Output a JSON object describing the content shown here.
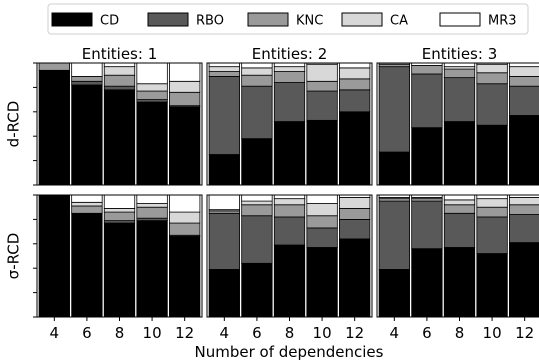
{
  "chart_data": {
    "type": "bar",
    "stacked": true,
    "normalized": true,
    "xlabel": "Number of dependencies",
    "categories": [
      "4",
      "6",
      "8",
      "10",
      "12"
    ],
    "series_order": [
      "CD",
      "RBO",
      "KNC",
      "CA",
      "MR3"
    ],
    "colors": {
      "CD": "#000000",
      "RBO": "#595959",
      "KNC": "#9a9a9a",
      "CA": "#d8d8d8",
      "MR3": "#ffffff"
    },
    "legend": {
      "position": "top",
      "entries": [
        "CD",
        "RBO",
        "KNC",
        "CA",
        "MR3"
      ]
    },
    "row_labels": [
      "d-RCD",
      "σ-RCD"
    ],
    "col_titles": [
      "Entities: 1",
      "Entities: 2",
      "Entities: 3"
    ],
    "ylim": [
      0,
      1
    ],
    "grid": false,
    "panels": [
      {
        "row": 0,
        "col": 0,
        "stacks": [
          {
            "CD": 0.94,
            "RBO": 0.0,
            "KNC": 0.06,
            "CA": 0.0,
            "MR3": 0.0
          },
          {
            "CD": 0.82,
            "RBO": 0.03,
            "KNC": 0.04,
            "CA": 0.0,
            "MR3": 0.11
          },
          {
            "CD": 0.78,
            "RBO": 0.03,
            "KNC": 0.09,
            "CA": 0.07,
            "MR3": 0.03
          },
          {
            "CD": 0.68,
            "RBO": 0.02,
            "KNC": 0.07,
            "CA": 0.06,
            "MR3": 0.17
          },
          {
            "CD": 0.64,
            "RBO": 0.01,
            "KNC": 0.11,
            "CA": 0.09,
            "MR3": 0.15
          }
        ]
      },
      {
        "row": 0,
        "col": 1,
        "stacks": [
          {
            "CD": 0.25,
            "RBO": 0.64,
            "KNC": 0.04,
            "CA": 0.04,
            "MR3": 0.03
          },
          {
            "CD": 0.38,
            "RBO": 0.43,
            "KNC": 0.09,
            "CA": 0.06,
            "MR3": 0.04
          },
          {
            "CD": 0.52,
            "RBO": 0.32,
            "KNC": 0.09,
            "CA": 0.04,
            "MR3": 0.03
          },
          {
            "CD": 0.53,
            "RBO": 0.24,
            "KNC": 0.08,
            "CA": 0.14,
            "MR3": 0.01
          },
          {
            "CD": 0.6,
            "RBO": 0.18,
            "KNC": 0.09,
            "CA": 0.09,
            "MR3": 0.04
          }
        ]
      },
      {
        "row": 0,
        "col": 2,
        "stacks": [
          {
            "CD": 0.27,
            "RBO": 0.7,
            "KNC": 0.02,
            "CA": 0.01,
            "MR3": 0.0
          },
          {
            "CD": 0.47,
            "RBO": 0.44,
            "KNC": 0.07,
            "CA": 0.0,
            "MR3": 0.02
          },
          {
            "CD": 0.52,
            "RBO": 0.36,
            "KNC": 0.07,
            "CA": 0.02,
            "MR3": 0.03
          },
          {
            "CD": 0.49,
            "RBO": 0.34,
            "KNC": 0.09,
            "CA": 0.07,
            "MR3": 0.01
          },
          {
            "CD": 0.57,
            "RBO": 0.24,
            "KNC": 0.08,
            "CA": 0.08,
            "MR3": 0.03
          }
        ]
      },
      {
        "row": 1,
        "col": 0,
        "stacks": [
          {
            "CD": 1.0,
            "RBO": 0.0,
            "KNC": 0.0,
            "CA": 0.0,
            "MR3": 0.0
          },
          {
            "CD": 0.85,
            "RBO": 0.0,
            "KNC": 0.06,
            "CA": 0.03,
            "MR3": 0.06
          },
          {
            "CD": 0.77,
            "RBO": 0.02,
            "KNC": 0.07,
            "CA": 0.03,
            "MR3": 0.11
          },
          {
            "CD": 0.79,
            "RBO": 0.02,
            "KNC": 0.09,
            "CA": 0.03,
            "MR3": 0.07
          },
          {
            "CD": 0.66,
            "RBO": 0.01,
            "KNC": 0.1,
            "CA": 0.09,
            "MR3": 0.14
          }
        ]
      },
      {
        "row": 1,
        "col": 1,
        "stacks": [
          {
            "CD": 0.39,
            "RBO": 0.46,
            "KNC": 0.02,
            "CA": 0.01,
            "MR3": 0.12
          },
          {
            "CD": 0.44,
            "RBO": 0.39,
            "KNC": 0.09,
            "CA": 0.03,
            "MR3": 0.05
          },
          {
            "CD": 0.59,
            "RBO": 0.23,
            "KNC": 0.1,
            "CA": 0.05,
            "MR3": 0.03
          },
          {
            "CD": 0.57,
            "RBO": 0.16,
            "KNC": 0.1,
            "CA": 0.1,
            "MR3": 0.07
          },
          {
            "CD": 0.64,
            "RBO": 0.16,
            "KNC": 0.09,
            "CA": 0.09,
            "MR3": 0.02
          }
        ]
      },
      {
        "row": 1,
        "col": 2,
        "stacks": [
          {
            "CD": 0.39,
            "RBO": 0.56,
            "KNC": 0.02,
            "CA": 0.01,
            "MR3": 0.02
          },
          {
            "CD": 0.56,
            "RBO": 0.39,
            "KNC": 0.02,
            "CA": 0.01,
            "MR3": 0.02
          },
          {
            "CD": 0.57,
            "RBO": 0.28,
            "KNC": 0.07,
            "CA": 0.04,
            "MR3": 0.04
          },
          {
            "CD": 0.52,
            "RBO": 0.3,
            "KNC": 0.08,
            "CA": 0.07,
            "MR3": 0.03
          },
          {
            "CD": 0.61,
            "RBO": 0.23,
            "KNC": 0.08,
            "CA": 0.06,
            "MR3": 0.02
          }
        ]
      }
    ]
  }
}
